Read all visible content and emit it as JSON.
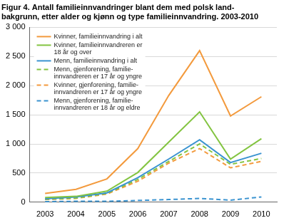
{
  "chart_data": {
    "type": "line",
    "title": [
      "Figur 4. Antall familieinnvandringer blant dem med polsk land-",
      "bakgrunn, etter alder og kjønn og type familieinnvandring. 2003-2010"
    ],
    "categories": [
      "2003",
      "2004",
      "2005",
      "2006",
      "2007",
      "2008",
      "2009",
      "2010"
    ],
    "series": [
      {
        "name": "Kvinner, familieinnvandring i alt",
        "color": "#f39a3d",
        "line_style": "solid",
        "values": [
          150,
          220,
          400,
          920,
          1830,
          2600,
          1480,
          1810
        ]
      },
      {
        "name": "Kvinner, familieinnvandreren er 18 år og over",
        "color": "#83c441",
        "line_style": "solid",
        "values": [
          80,
          100,
          190,
          510,
          1030,
          1550,
          740,
          1090
        ]
      },
      {
        "name": "Menn, familieinnvandring i alt",
        "color": "#3a93d0",
        "line_style": "solid",
        "values": [
          60,
          90,
          160,
          420,
          740,
          1070,
          680,
          840
        ]
      },
      {
        "name": "Menn, gjenforening, familie-innvandreren er 17 år og yngre",
        "color": "#83c441",
        "line_style": "dashed",
        "values": [
          50,
          70,
          150,
          390,
          700,
          1000,
          650,
          750
        ]
      },
      {
        "name": "Kvinner, gjenforening, familie-innvandreren er 17 år og yngre",
        "color": "#f39a3d",
        "line_style": "dashed",
        "values": [
          45,
          65,
          140,
          360,
          670,
          920,
          590,
          700
        ]
      },
      {
        "name": "Menn, gjenforening, familie-innvandreren er 18 år og eldre",
        "color": "#3a93d0",
        "line_style": "dashed",
        "values": [
          10,
          15,
          15,
          30,
          45,
          65,
          35,
          90
        ]
      }
    ],
    "ylim": [
      0,
      3000
    ],
    "yticks": [
      {
        "value": 0,
        "label": "0"
      },
      {
        "value": 500,
        "label": "500"
      },
      {
        "value": 1000,
        "label": "1 000"
      },
      {
        "value": 1500,
        "label": "1 500"
      },
      {
        "value": 2000,
        "label": "2 000"
      },
      {
        "value": 2500,
        "label": "2 500"
      },
      {
        "value": 3000,
        "label": "3 000"
      }
    ],
    "grid": true,
    "legend": "top-left"
  }
}
